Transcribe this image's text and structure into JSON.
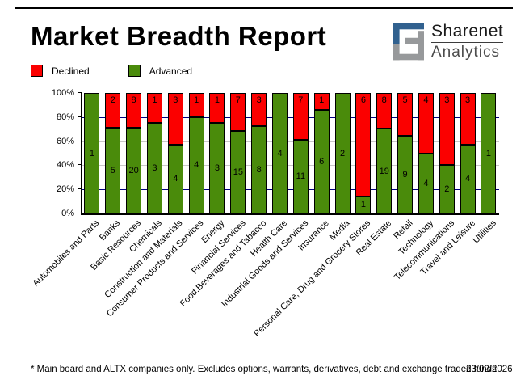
{
  "header": {
    "title": "Market Breadth Report",
    "logo": {
      "line1": "Sharenet",
      "line2": "Analytics",
      "blue": "#31618f",
      "grey": "#97999b"
    }
  },
  "legend": [
    {
      "label": "Declined",
      "color": "#fb0000"
    },
    {
      "label": "Advanced",
      "color": "#4a8b0b"
    }
  ],
  "chart_data": {
    "type": "bar",
    "stacked": true,
    "normalized": "percent",
    "title": "Market Breadth Report",
    "categories": [
      "Automobiles and Parts",
      "Banks",
      "Basic Resources",
      "Chemicals",
      "Construction and Materials",
      "Consumer Products and Services",
      "Energy",
      "Financial Services",
      "Food,Beverages and Tabacco",
      "Health Care",
      "Industrial Goods and Services",
      "Insurance",
      "Media",
      "Personal Care, Drug and Grocery Stores",
      "Real Estate",
      "Retail",
      "Technology",
      "Telecommunications",
      "Travel and Leisure",
      "Utilities"
    ],
    "series": [
      {
        "name": "Advanced",
        "color": "#4a8b0b",
        "values": [
          1,
          5,
          20,
          3,
          4,
          4,
          3,
          15,
          8,
          4,
          11,
          6,
          2,
          1,
          19,
          9,
          4,
          2,
          4,
          1
        ]
      },
      {
        "name": "Declined",
        "color": "#fb0000",
        "values": [
          0,
          2,
          8,
          1,
          3,
          1,
          1,
          7,
          3,
          0,
          7,
          1,
          0,
          6,
          8,
          5,
          4,
          3,
          3,
          0
        ]
      }
    ],
    "ylim": [
      0,
      100
    ],
    "y_ticks": [
      "100%",
      "80%",
      "60%",
      "40%",
      "20%",
      "0%"
    ],
    "gridlines": [
      {
        "pct": 80,
        "color": "#000080"
      },
      {
        "pct": 60,
        "color": "#c8c8c8"
      },
      {
        "pct": 40,
        "color": "#c8c8c8"
      },
      {
        "pct": 20,
        "color": "#000080"
      }
    ],
    "reference_line_pct": 50,
    "legend_position": "top-left"
  },
  "footer": {
    "note": "* Main board and ALTX companies only. Excludes options, warrants, derivatives, debt and exchange traded funds",
    "date": "23/02/2026"
  }
}
